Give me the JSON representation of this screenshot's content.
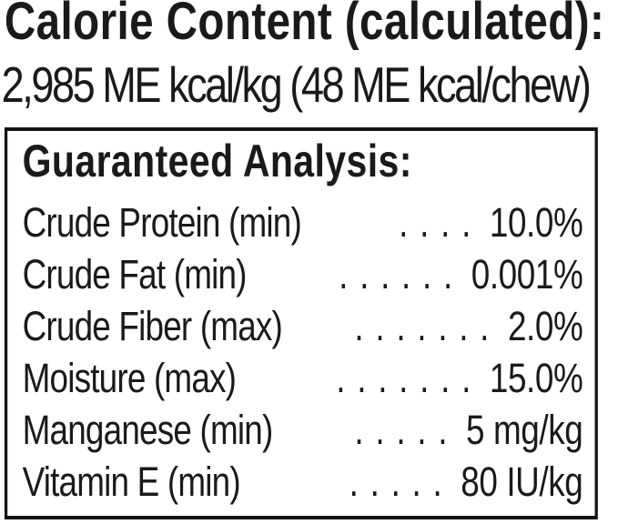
{
  "colors": {
    "background": "#ffffff",
    "text": "#1a1a1a",
    "box_border": "#141414"
  },
  "calorie_content": {
    "title": "Calorie Content (calculated):",
    "value_line": "2,985 ME kcal/kg (48 ME kcal/chew)"
  },
  "guaranteed_analysis": {
    "title": "Guaranteed Analysis:",
    "rows": [
      {
        "label": "Crude Protein (min)",
        "leader": ". . . .",
        "value": "10.0%"
      },
      {
        "label": "Crude Fat (min)",
        "leader": ". . . . . .",
        "value": "0.001%"
      },
      {
        "label": "Crude Fiber (max)",
        "leader": ". . . . . . .",
        "value": "2.0%"
      },
      {
        "label": "Moisture (max)",
        "leader": ". . . . . . .",
        "value": "15.0%"
      },
      {
        "label": "Manganese (min)",
        "leader": ". . . . .",
        "value": "5 mg/kg"
      },
      {
        "label": "Vitamin E (min)",
        "leader": ". . . . .",
        "value": "80 IU/kg"
      }
    ]
  }
}
